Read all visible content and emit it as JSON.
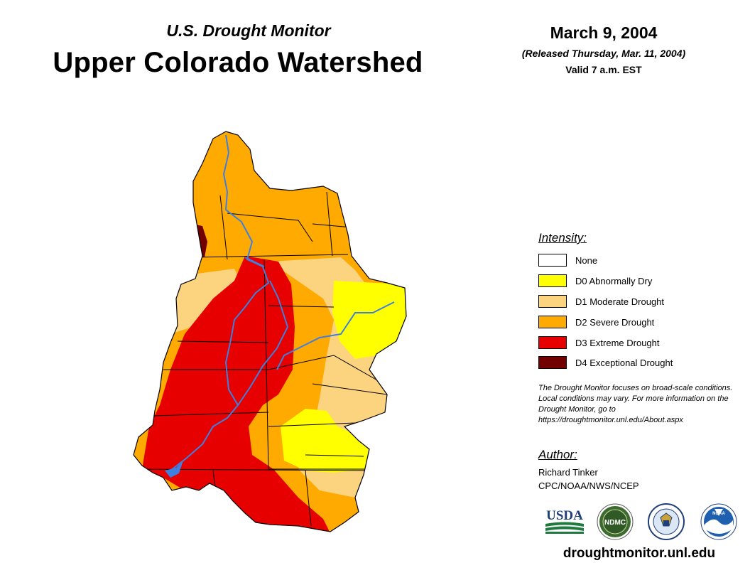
{
  "header": {
    "subtitle": "U.S. Drought Monitor",
    "title": "Upper Colorado Watershed",
    "date": "March 9, 2004",
    "released": "(Released Thursday, Mar. 11, 2004)",
    "valid": "Valid 7 a.m. EST"
  },
  "legend": {
    "title": "Intensity:",
    "items": [
      {
        "label": "None",
        "color": "#ffffff"
      },
      {
        "label": "D0 Abnormally Dry",
        "color": "#ffff00"
      },
      {
        "label": "D1 Moderate Drought",
        "color": "#fcd37f"
      },
      {
        "label": "D2 Severe Drought",
        "color": "#ffaa00"
      },
      {
        "label": "D3 Extreme Drought",
        "color": "#e60000"
      },
      {
        "label": "D4 Exceptional Drought",
        "color": "#730000"
      }
    ]
  },
  "note": "The Drought Monitor focuses on broad-scale conditions. Local conditions may vary. For more information on the Drought Monitor, go to https://droughtmonitor.unl.edu/About.aspx",
  "author": {
    "title": "Author:",
    "name": "Richard Tinker",
    "org": "CPC/NOAA/NWS/NCEP"
  },
  "logos": {
    "usda": "USDA",
    "ndmc": "NDMC",
    "noaa": "NOAA"
  },
  "website": "droughtmonitor.unl.edu"
}
